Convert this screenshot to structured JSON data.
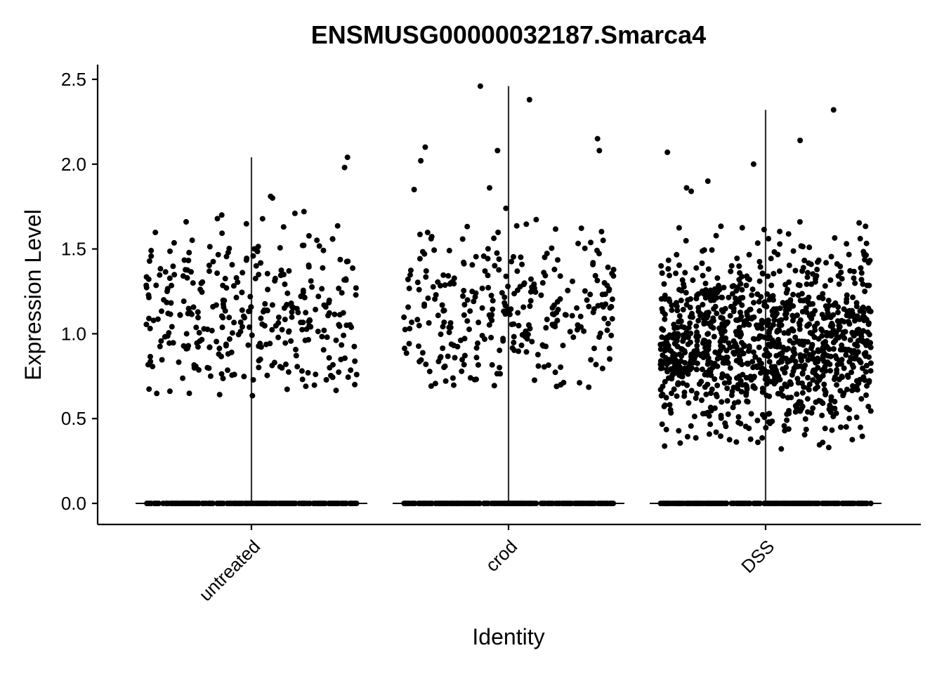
{
  "chart_data": {
    "type": "violin-jitter",
    "title": "ENSMUSG00000032187.Smarca4",
    "xlabel": "Identity",
    "ylabel": "Expression Level",
    "ylim": [
      -0.12,
      2.6
    ],
    "yticks": [
      0.0,
      0.5,
      1.0,
      1.5,
      2.0,
      2.5
    ],
    "ytick_labels": [
      "0.0",
      "0.5",
      "1.0",
      "1.5",
      "2.0",
      "2.5"
    ],
    "categories": [
      "untreated",
      "crod",
      "DSS"
    ],
    "groups": [
      {
        "name": "untreated",
        "max": 2.04,
        "n_nonzero": 330,
        "range_nonzero": [
          0.63,
          2.04
        ],
        "outliers": [
          1.81,
          1.98,
          2.04,
          1.8,
          1.72,
          1.71,
          1.7
        ],
        "zero_line": true
      },
      {
        "name": "crod",
        "max": 2.46,
        "n_nonzero": 300,
        "range_nonzero": [
          0.68,
          2.46
        ],
        "outliers": [
          2.46,
          2.38,
          2.15,
          2.1,
          2.08,
          2.08,
          2.02,
          1.86,
          1.85
        ],
        "zero_line": true
      },
      {
        "name": "DSS",
        "max": 2.32,
        "n_nonzero": 1150,
        "range_nonzero": [
          0.32,
          2.32
        ],
        "outliers": [
          2.32,
          2.14,
          2.07,
          2.0,
          1.9,
          1.86,
          1.84
        ],
        "zero_line": true
      }
    ],
    "grid": false,
    "legend": "none",
    "point_color": "#000000"
  }
}
